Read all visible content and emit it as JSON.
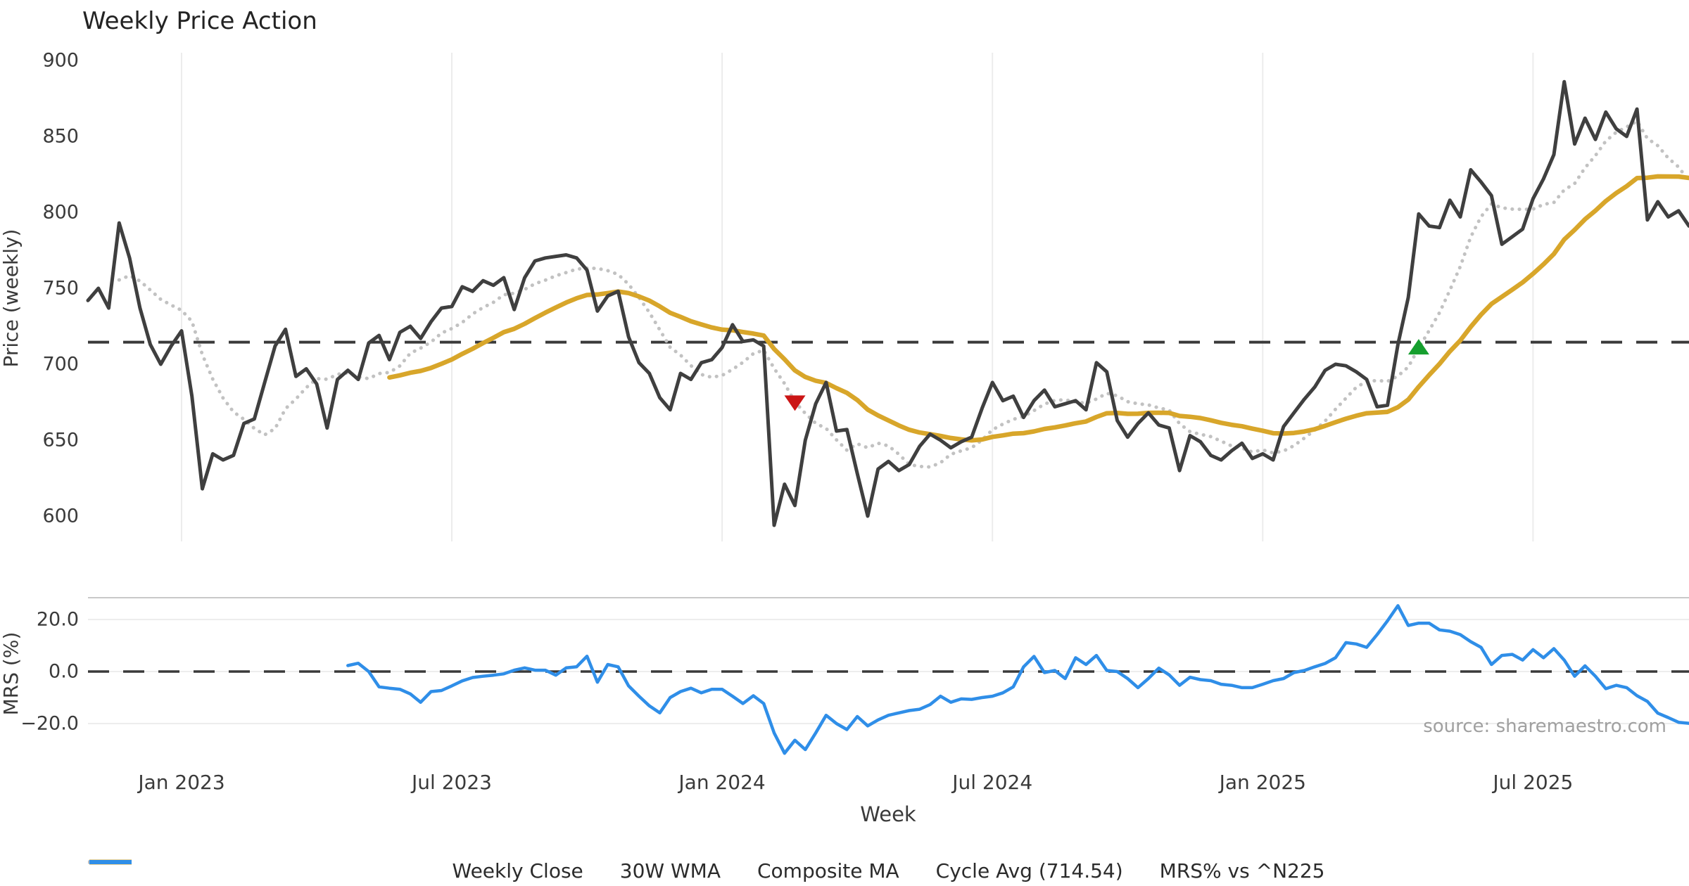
{
  "title": "Weekly Price Action",
  "source": "source: sharemaestro.com",
  "axes": {
    "price_label": "Price (weekly)",
    "mrs_label": "MRS (%)",
    "week_label": "Week"
  },
  "legend": {
    "items": [
      {
        "label": "Weekly Close",
        "color": "#3f3f3f",
        "pattern": "solid",
        "weight": 6
      },
      {
        "label": "30W WMA",
        "color": "#d8a62a",
        "pattern": "solid",
        "weight": 7
      },
      {
        "label": "Composite MA",
        "color": "#c2c2c2",
        "pattern": "dotted",
        "weight": 5.5
      },
      {
        "label": "Cycle Avg (714.54)",
        "color": "#3a3a3a",
        "pattern": "dashed",
        "weight": 4
      },
      {
        "label": "MRS% vs ^N225",
        "color": "#2f8ee8",
        "pattern": "solid",
        "weight": 6
      }
    ]
  },
  "chart_data": {
    "type": "line",
    "title": "Weekly Price Action",
    "xlabel": "Week",
    "x_ticks": {
      "labels": [
        "Jan 2023",
        "Jul 2023",
        "Jan 2024",
        "Jul 2024",
        "Jan 2025",
        "Jul 2025"
      ],
      "weeks": [
        9,
        35,
        61,
        87,
        113,
        139
      ]
    },
    "weeks_total": 155,
    "price_panel": {
      "ylabel": "Price (weekly)",
      "ylim": [
        585,
        905
      ],
      "yticks": [
        900,
        850,
        800,
        750,
        700,
        650,
        600
      ],
      "grid": "vertical-only",
      "series": [
        {
          "name": "Weekly Close",
          "color": "#3f3f3f",
          "style": "solid",
          "start_week": 0,
          "values": [
            742,
            750,
            737,
            793,
            770,
            737,
            713,
            700,
            712,
            722,
            679,
            618,
            641,
            637,
            640,
            661,
            664,
            688,
            712,
            723,
            692,
            697,
            687,
            658,
            690,
            696,
            690,
            714,
            719,
            703,
            721,
            725,
            717,
            728,
            737,
            738,
            751,
            748,
            755,
            752,
            757,
            736,
            757,
            768,
            770,
            771,
            772,
            770,
            762,
            735,
            745,
            748,
            718,
            701,
            694,
            678,
            670,
            694,
            690,
            701,
            703,
            711,
            726,
            715,
            716,
            712,
            594,
            621,
            607,
            650,
            674,
            688,
            656,
            657,
            628,
            600,
            631,
            636,
            630,
            634,
            646,
            654,
            650,
            645,
            649,
            652,
            671,
            688,
            676,
            679,
            665,
            676,
            683,
            672,
            674,
            676,
            670,
            701,
            695,
            663,
            652,
            661,
            668,
            660,
            658,
            630,
            653,
            649,
            640,
            637,
            643,
            648,
            638,
            641,
            637,
            659,
            668,
            677,
            685,
            696,
            700,
            699,
            695,
            690,
            672,
            673,
            713,
            744,
            799,
            791,
            790,
            808,
            797,
            828,
            820,
            811,
            779,
            784,
            789,
            809,
            822,
            838,
            886,
            845,
            862,
            848,
            866,
            855,
            850,
            868,
            795,
            807,
            797,
            801,
            791
          ]
        },
        {
          "name": "30W WMA",
          "color": "#d8a62a",
          "style": "solid",
          "derived": "linear_weighted_ma",
          "window": 30
        },
        {
          "name": "Composite MA",
          "color": "#c2c2c2",
          "style": "dotted",
          "derived": "sma",
          "window": 8,
          "min_window": 4
        },
        {
          "name": "Cycle Avg",
          "color": "#3a3a3a",
          "style": "dashed",
          "hline": 714.54
        }
      ],
      "markers": [
        {
          "name": "sell-signal",
          "shape": "triangle-down",
          "color": "#cb1515",
          "week": 68,
          "price": 675.3
        },
        {
          "name": "buy-signal",
          "shape": "triangle-up",
          "color": "#169f2e",
          "week": 128,
          "price": 710.6
        }
      ]
    },
    "mrs_panel": {
      "ylabel": "MRS (%)",
      "ylim": [
        -34,
        27
      ],
      "yticks": [
        {
          "label": "20.0",
          "value": 20
        },
        {
          "label": "0.0",
          "value": 0
        },
        {
          "label": "−20.0",
          "value": -20
        }
      ],
      "zero_line": {
        "style": "dashed",
        "color": "#3a3a3a"
      },
      "series": [
        {
          "name": "MRS% vs ^N225",
          "color": "#2f8ee8",
          "style": "solid",
          "start_week": 25,
          "values": [
            2.3,
            3.2,
            0.0,
            -5.9,
            -6.4,
            -6.8,
            -8.6,
            -11.8,
            -7.7,
            -7.3,
            -5.5,
            -3.6,
            -2.3,
            -1.8,
            -1.4,
            -0.9,
            0.5,
            1.4,
            0.5,
            0.5,
            -1.4,
            1.4,
            1.8,
            5.9,
            -4.1,
            2.7,
            1.8,
            -5.5,
            -9.5,
            -13.2,
            -15.9,
            -10.0,
            -7.7,
            -6.4,
            -8.2,
            -6.8,
            -6.8,
            -9.5,
            -12.3,
            -9.3,
            -12.3,
            -23.6,
            -31.4,
            -26.4,
            -30.0,
            -23.6,
            -16.8,
            -20.0,
            -22.3,
            -17.3,
            -20.9,
            -18.6,
            -16.8,
            -15.9,
            -15.0,
            -14.5,
            -12.7,
            -9.5,
            -11.8,
            -10.5,
            -10.7,
            -10.0,
            -9.5,
            -8.2,
            -5.9,
            1.8,
            5.8,
            -0.4,
            0.4,
            -2.7,
            5.3,
            2.7,
            6.2,
            0.4,
            0.0,
            -2.7,
            -6.2,
            -2.7,
            1.3,
            -1.3,
            -5.3,
            -2.2,
            -3.1,
            -3.5,
            -4.9,
            -5.3,
            -6.2,
            -6.2,
            -4.9,
            -3.5,
            -2.7,
            -0.4,
            0.4,
            1.8,
            3.1,
            5.3,
            11.1,
            10.6,
            9.3,
            14.2,
            19.5,
            25.3,
            17.7,
            18.6,
            18.6,
            16.0,
            15.5,
            14.2,
            11.5,
            9.3,
            2.7,
            6.2,
            6.6,
            4.4,
            8.4,
            5.3,
            8.8,
            4.4,
            -1.8,
            2.2,
            -1.8,
            -6.6,
            -5.3,
            -6.2,
            -9.3,
            -11.5,
            -16.0,
            -17.7,
            -19.5,
            -19.9
          ]
        }
      ]
    }
  }
}
